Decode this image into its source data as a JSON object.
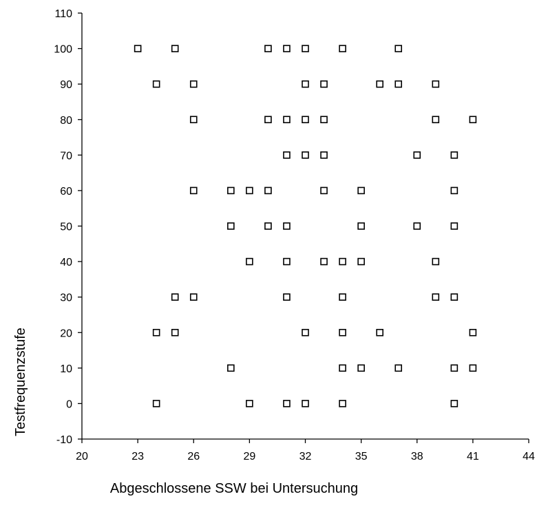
{
  "chart_data": {
    "type": "scatter",
    "xlabel": "Abgeschlossene SSW bei Untersuchung",
    "ylabel": "Testfrequenzstufe",
    "xlim": [
      20,
      44
    ],
    "ylim": [
      -10,
      110
    ],
    "xticks": [
      20,
      23,
      26,
      29,
      32,
      35,
      38,
      41,
      44
    ],
    "yticks": [
      -10,
      0,
      10,
      20,
      30,
      40,
      50,
      60,
      70,
      80,
      90,
      100,
      110
    ],
    "grid": false,
    "marker": "open-square",
    "points": [
      [
        23,
        100
      ],
      [
        25,
        100
      ],
      [
        30,
        100
      ],
      [
        31,
        100
      ],
      [
        32,
        100
      ],
      [
        34,
        100
      ],
      [
        37,
        100
      ],
      [
        24,
        90
      ],
      [
        26,
        90
      ],
      [
        32,
        90
      ],
      [
        33,
        90
      ],
      [
        36,
        90
      ],
      [
        37,
        90
      ],
      [
        39,
        90
      ],
      [
        26,
        80
      ],
      [
        30,
        80
      ],
      [
        31,
        80
      ],
      [
        32,
        80
      ],
      [
        33,
        80
      ],
      [
        39,
        80
      ],
      [
        41,
        80
      ],
      [
        31,
        70
      ],
      [
        32,
        70
      ],
      [
        33,
        70
      ],
      [
        38,
        70
      ],
      [
        40,
        70
      ],
      [
        26,
        60
      ],
      [
        28,
        60
      ],
      [
        29,
        60
      ],
      [
        30,
        60
      ],
      [
        33,
        60
      ],
      [
        35,
        60
      ],
      [
        40,
        60
      ],
      [
        28,
        50
      ],
      [
        30,
        50
      ],
      [
        31,
        50
      ],
      [
        35,
        50
      ],
      [
        38,
        50
      ],
      [
        40,
        50
      ],
      [
        29,
        40
      ],
      [
        31,
        40
      ],
      [
        33,
        40
      ],
      [
        34,
        40
      ],
      [
        35,
        40
      ],
      [
        39,
        40
      ],
      [
        25,
        30
      ],
      [
        26,
        30
      ],
      [
        31,
        30
      ],
      [
        34,
        30
      ],
      [
        39,
        30
      ],
      [
        40,
        30
      ],
      [
        24,
        20
      ],
      [
        25,
        20
      ],
      [
        32,
        20
      ],
      [
        34,
        20
      ],
      [
        36,
        20
      ],
      [
        41,
        20
      ],
      [
        28,
        10
      ],
      [
        34,
        10
      ],
      [
        35,
        10
      ],
      [
        37,
        10
      ],
      [
        40,
        10
      ],
      [
        41,
        10
      ],
      [
        24,
        0
      ],
      [
        29,
        0
      ],
      [
        31,
        0
      ],
      [
        32,
        0
      ],
      [
        34,
        0
      ],
      [
        40,
        0
      ]
    ]
  }
}
